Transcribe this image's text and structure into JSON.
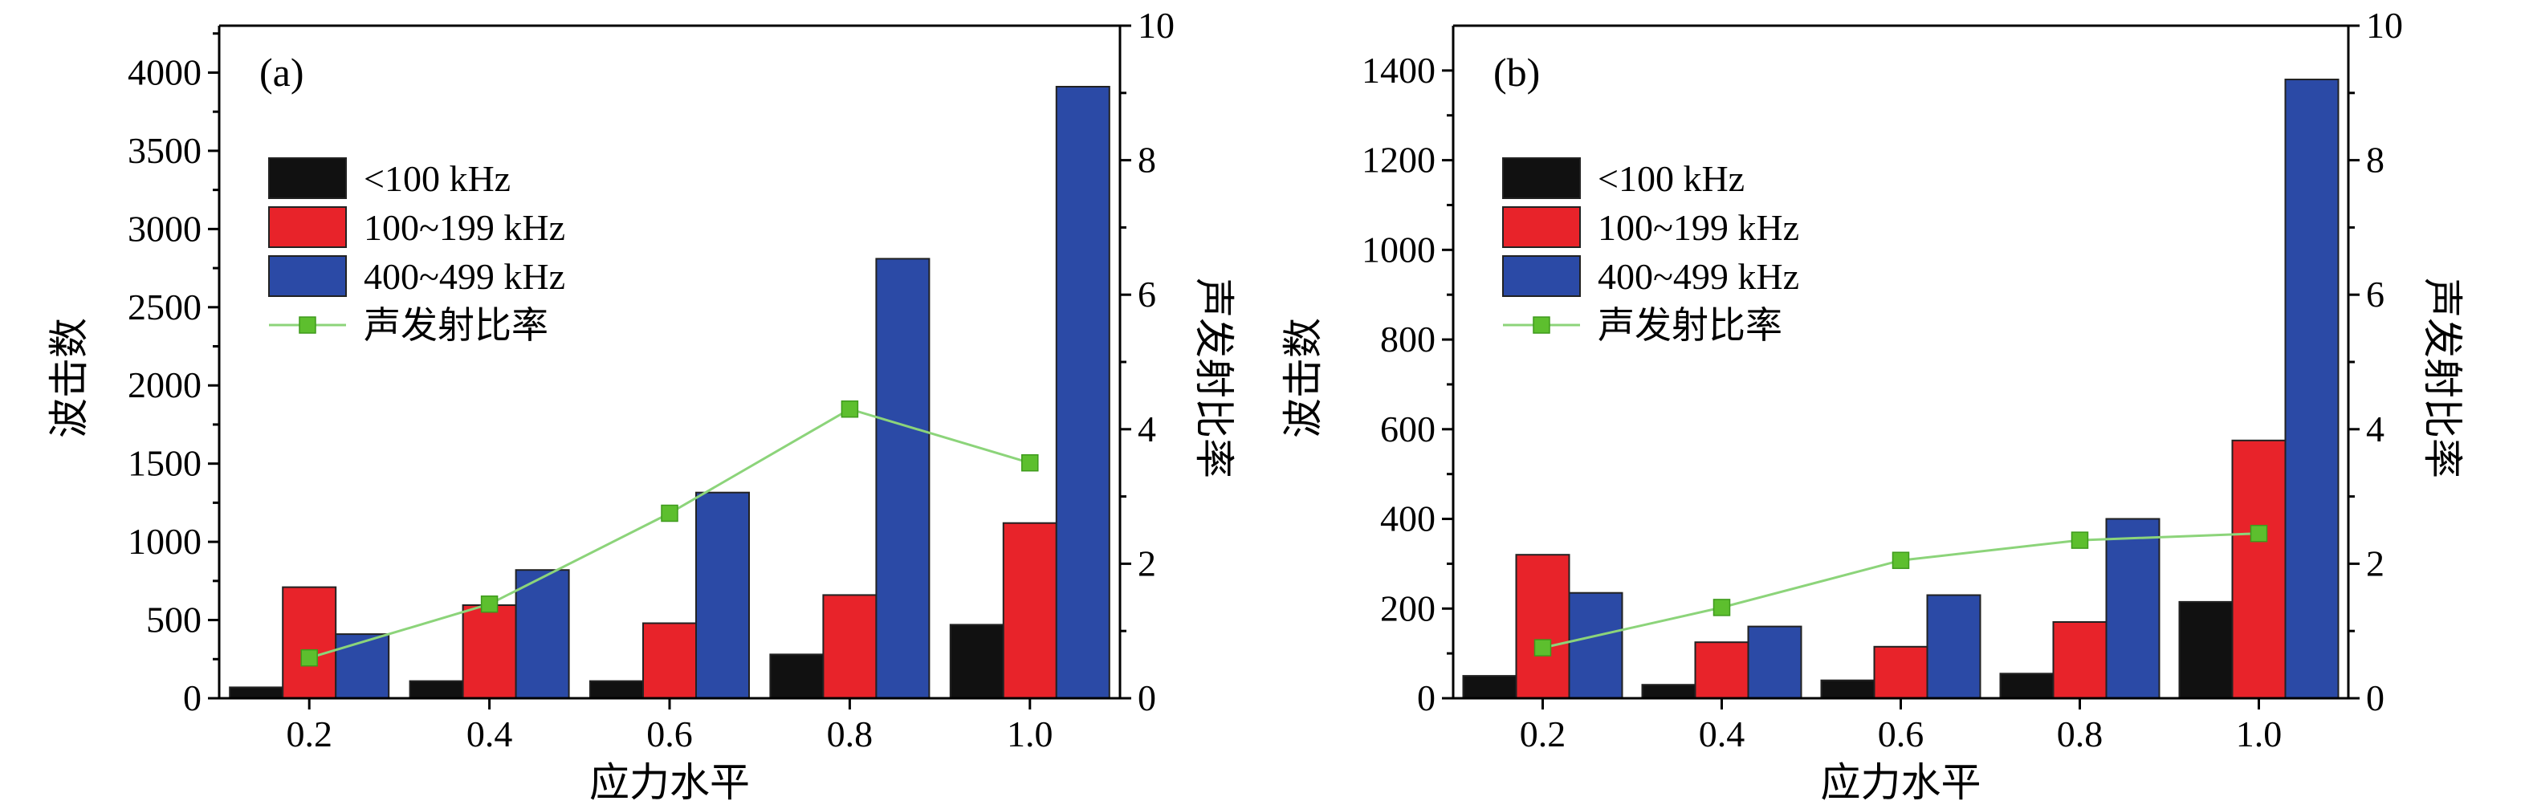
{
  "figure": {
    "xlabel": "应力水平",
    "ylabel_left": "波击数",
    "ylabel_right": "声发射比率"
  },
  "legend": [
    {
      "label": "<100 kHz",
      "color": "#111111",
      "kind": "bar"
    },
    {
      "label": "100~199 kHz",
      "color": "#e8232a",
      "kind": "bar"
    },
    {
      "label": "400~499 kHz",
      "color": "#2b4aa6",
      "kind": "bar"
    },
    {
      "label": "声发射比率",
      "color": "#8cd47a",
      "marker": "#5dbf2e",
      "kind": "line"
    }
  ],
  "chart_data": [
    {
      "type": "bar",
      "panel_label": "(a)",
      "categories": [
        "0.2",
        "0.4",
        "0.6",
        "0.8",
        "1.0"
      ],
      "series": [
        {
          "name": "<100 kHz",
          "values": [
            70,
            110,
            110,
            280,
            470
          ]
        },
        {
          "name": "100~199 kHz",
          "values": [
            710,
            595,
            480,
            660,
            1120
          ]
        },
        {
          "name": "400~499 kHz",
          "values": [
            410,
            820,
            1315,
            2810,
            3910
          ]
        },
        {
          "name": "声发射比率",
          "type": "line",
          "axis": "right",
          "values": [
            0.6,
            1.4,
            2.75,
            4.3,
            3.5
          ]
        }
      ],
      "xlabel": "应力水平",
      "ylabel": "波击数",
      "y2label": "声发射比率",
      "ylim": [
        0,
        4300
      ],
      "y2lim": [
        0,
        10
      ],
      "yticks": [
        0,
        500,
        1000,
        1500,
        2000,
        2500,
        3000,
        3500,
        4000
      ],
      "y2ticks": [
        0,
        2,
        4,
        6,
        8,
        10
      ],
      "grid": false,
      "legend_position": "upper-left"
    },
    {
      "type": "bar",
      "panel_label": "(b)",
      "categories": [
        "0.2",
        "0.4",
        "0.6",
        "0.8",
        "1.0"
      ],
      "series": [
        {
          "name": "<100 kHz",
          "values": [
            50,
            30,
            40,
            55,
            215
          ]
        },
        {
          "name": "100~199 kHz",
          "values": [
            320,
            125,
            115,
            170,
            575
          ]
        },
        {
          "name": "400~499 kHz",
          "values": [
            235,
            160,
            230,
            400,
            1380
          ]
        },
        {
          "name": "声发射比率",
          "type": "line",
          "axis": "right",
          "values": [
            0.75,
            1.35,
            2.05,
            2.35,
            2.45
          ]
        }
      ],
      "xlabel": "应力水平",
      "ylabel": "波击数",
      "y2label": "声发射比率",
      "ylim": [
        0,
        1500
      ],
      "y2lim": [
        0,
        10
      ],
      "yticks": [
        0,
        200,
        400,
        600,
        800,
        1000,
        1200,
        1400
      ],
      "y2ticks": [
        0,
        2,
        4,
        6,
        8,
        10
      ],
      "grid": false,
      "legend_position": "upper-left"
    }
  ]
}
